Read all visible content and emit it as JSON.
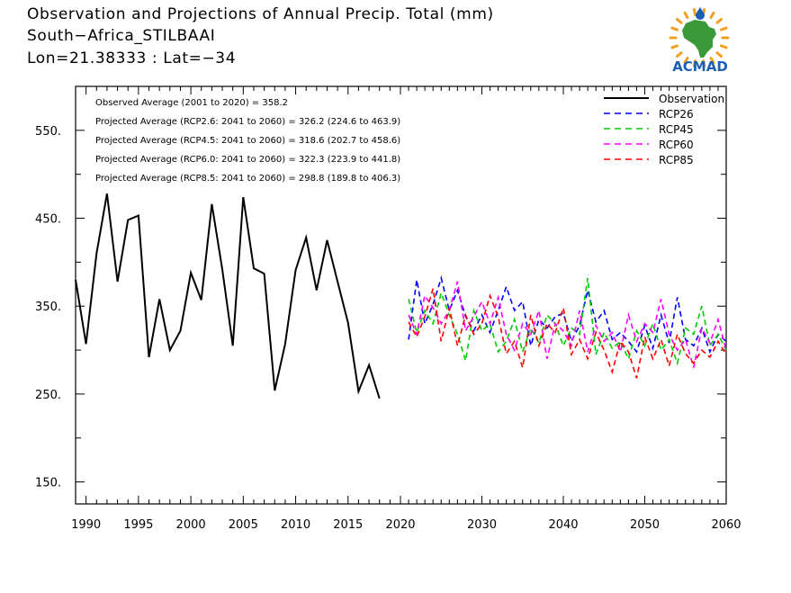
{
  "title_lines": [
    "Observation and Projections of Annual Precip. Total (mm)",
    "South−Africa_STILBAAI",
    "Lon=21.38333 : Lat=−34"
  ],
  "logo": {
    "text": "ACMAD",
    "colors": {
      "map": "#3a9a3a",
      "rays": "#f0a020",
      "text": "#1a5fb4"
    }
  },
  "stats_lines": [
    "Observed Average (2001 to 2020) = 358.2",
    "Projected Average (RCP2.6: 2041 to 2060) = 326.2 (224.6 to 463.9)",
    "Projected Average (RCP4.5: 2041 to 2060) = 318.6 (202.7 to 458.6)",
    "Projected Average (RCP6.0: 2041 to 2060) = 322.3 (223.9 to 441.8)",
    "Projected Average (RCP8.5: 2041 to 2060) = 298.8 (189.8 to 406.3)"
  ],
  "chart_data": {
    "type": "line",
    "title": "Observation and Projections of Annual Precip. Total (mm)",
    "xlabel": "",
    "ylabel": "",
    "ylim": [
      125,
      600
    ],
    "y_ticks": [
      150,
      250,
      350,
      450,
      550
    ],
    "y_tick_labels": [
      "150.",
      "250.",
      "350.",
      "450.",
      "550."
    ],
    "x_ticks_part1": [
      1990,
      1995,
      2000,
      2005,
      2010,
      2015,
      2020
    ],
    "x_ticks_part2": [
      2030,
      2040,
      2050,
      2060
    ],
    "x_tick_labels": [
      "1990",
      "1995",
      "2000",
      "2005",
      "2010",
      "2015",
      "2020",
      "2030",
      "2040",
      "2050",
      "2060"
    ],
    "grid": false,
    "legend_position": "top-right",
    "series": [
      {
        "name": "Observation",
        "color": "#000000",
        "style": "solid",
        "x": [
          1989,
          1990,
          1991,
          1992,
          1993,
          1994,
          1995,
          1996,
          1997,
          1998,
          1999,
          2000,
          2001,
          2002,
          2003,
          2004,
          2005,
          2006,
          2007,
          2008,
          2009,
          2010,
          2011,
          2012,
          2013,
          2014,
          2015,
          2016,
          2017,
          2018,
          2019,
          2020
        ],
        "values": [
          380,
          307,
          410,
          478,
          378,
          448,
          453,
          292,
          358,
          300,
          322,
          388,
          357,
          466,
          392,
          305,
          474,
          393,
          387,
          254,
          307,
          391,
          428,
          368,
          425,
          378,
          331,
          253,
          283,
          245,
          null,
          null
        ]
      },
      {
        "name": "RCP26",
        "color": "#0000ff",
        "style": "dashed",
        "x": [
          2021,
          2022,
          2023,
          2024,
          2025,
          2026,
          2027,
          2028,
          2029,
          2030,
          2031,
          2032,
          2033,
          2034,
          2035,
          2036,
          2037,
          2038,
          2039,
          2040,
          2041,
          2042,
          2043,
          2044,
          2045,
          2046,
          2047,
          2048,
          2049,
          2050,
          2051,
          2052,
          2053,
          2054,
          2055,
          2056,
          2057,
          2058,
          2059,
          2060
        ],
        "values": [
          312,
          380,
          330,
          352,
          382,
          345,
          368,
          338,
          322,
          340,
          320,
          345,
          372,
          345,
          355,
          305,
          335,
          325,
          338,
          342,
          310,
          328,
          368,
          332,
          345,
          312,
          320,
          310,
          298,
          328,
          302,
          340,
          308,
          360,
          312,
          305,
          325,
          298,
          318,
          310
        ]
      },
      {
        "name": "RCP45",
        "color": "#00cc00",
        "style": "dashed",
        "x": [
          2021,
          2022,
          2023,
          2024,
          2025,
          2026,
          2027,
          2028,
          2029,
          2030,
          2031,
          2032,
          2033,
          2034,
          2035,
          2036,
          2037,
          2038,
          2039,
          2040,
          2041,
          2042,
          2043,
          2044,
          2045,
          2046,
          2047,
          2048,
          2049,
          2050,
          2051,
          2052,
          2053,
          2054,
          2055,
          2056,
          2057,
          2058,
          2059,
          2060
        ],
        "values": [
          358,
          320,
          345,
          330,
          365,
          340,
          318,
          288,
          345,
          322,
          330,
          298,
          310,
          335,
          298,
          325,
          308,
          340,
          330,
          305,
          325,
          318,
          382,
          295,
          320,
          302,
          310,
          290,
          322,
          305,
          330,
          300,
          312,
          285,
          325,
          318,
          350,
          305,
          318,
          300
        ]
      },
      {
        "name": "RCP60",
        "color": "#ff00ff",
        "style": "dashed",
        "x": [
          2021,
          2022,
          2023,
          2024,
          2025,
          2026,
          2027,
          2028,
          2029,
          2030,
          2031,
          2032,
          2033,
          2034,
          2035,
          2036,
          2037,
          2038,
          2039,
          2040,
          2041,
          2042,
          2043,
          2044,
          2045,
          2046,
          2047,
          2048,
          2049,
          2050,
          2051,
          2052,
          2053,
          2054,
          2055,
          2056,
          2057,
          2058,
          2059,
          2060
        ],
        "values": [
          340,
          318,
          362,
          348,
          330,
          345,
          378,
          322,
          338,
          355,
          330,
          360,
          318,
          300,
          330,
          318,
          345,
          290,
          330,
          322,
          305,
          345,
          298,
          328,
          310,
          320,
          298,
          340,
          310,
          330,
          320,
          358,
          318,
          300,
          312,
          280,
          325,
          308,
          335,
          300
        ]
      },
      {
        "name": "RCP85",
        "color": "#ff0000",
        "style": "dashed",
        "x": [
          2021,
          2022,
          2023,
          2024,
          2025,
          2026,
          2027,
          2028,
          2029,
          2030,
          2031,
          2032,
          2033,
          2034,
          2035,
          2036,
          2037,
          2038,
          2039,
          2040,
          2041,
          2042,
          2043,
          2044,
          2045,
          2046,
          2047,
          2048,
          2049,
          2050,
          2051,
          2052,
          2053,
          2054,
          2055,
          2056,
          2057,
          2058,
          2059,
          2060
        ],
        "values": [
          332,
          315,
          338,
          370,
          310,
          348,
          305,
          340,
          318,
          330,
          362,
          338,
          296,
          310,
          280,
          340,
          305,
          330,
          320,
          348,
          295,
          312,
          290,
          320,
          300,
          275,
          310,
          298,
          268,
          315,
          290,
          312,
          282,
          318,
          296,
          285,
          300,
          292,
          310,
          295
        ]
      }
    ]
  }
}
